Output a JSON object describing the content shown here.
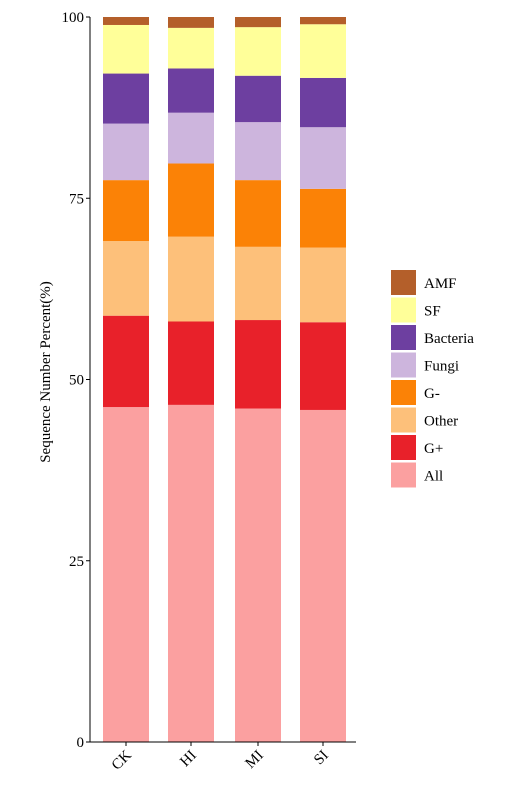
{
  "chart_data": {
    "type": "bar",
    "stacked": true,
    "ylabel": "Sequence Number Percent(%)",
    "xlabel": "",
    "title": "",
    "ylim": [
      0,
      100
    ],
    "yticks": [
      0,
      25,
      50,
      75,
      100
    ],
    "categories": [
      "CK",
      "HI",
      "MI",
      "SI"
    ],
    "grid": false,
    "legend_position": "right",
    "series": [
      {
        "name": "All",
        "color": "#FBA0A0",
        "values": [
          46.2,
          46.5,
          46.0,
          45.8
        ]
      },
      {
        "name": "G+",
        "color": "#E8212A",
        "values": [
          12.6,
          11.5,
          12.2,
          12.1
        ]
      },
      {
        "name": "Other",
        "color": "#FDC07A",
        "values": [
          10.3,
          11.7,
          10.1,
          10.3
        ]
      },
      {
        "name": "G-",
        "color": "#FB8206",
        "values": [
          8.4,
          10.1,
          9.2,
          8.1
        ]
      },
      {
        "name": "Fungi",
        "color": "#CDB5DD",
        "values": [
          7.8,
          7.0,
          8.0,
          8.5
        ]
      },
      {
        "name": "Bacteria",
        "color": "#6D3FA0",
        "values": [
          6.9,
          6.1,
          6.4,
          6.8
        ]
      },
      {
        "name": "SF",
        "color": "#FFFF99",
        "values": [
          6.7,
          5.6,
          6.7,
          7.4
        ]
      },
      {
        "name": "AMF",
        "color": "#B45F2A",
        "values": [
          1.1,
          1.5,
          1.4,
          1.0
        ]
      }
    ]
  }
}
